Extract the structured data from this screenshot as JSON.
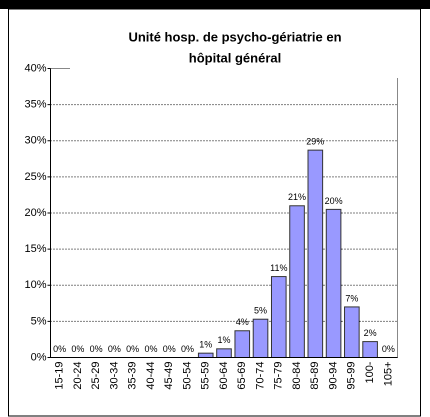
{
  "chart_data": {
    "type": "bar",
    "title": [
      "Unité hosp. de psycho-gériatrie en",
      "hôpital général"
    ],
    "categories": [
      "15-19",
      "20-24",
      "25-29",
      "30-34",
      "35-39",
      "40-44",
      "45-49",
      "50-54",
      "55-59",
      "60-64",
      "65-69",
      "70-74",
      "75-79",
      "80-84",
      "85-89",
      "90-94",
      "95-99",
      "100-",
      "105+"
    ],
    "values": [
      0,
      0,
      0,
      0,
      0,
      0,
      0,
      0,
      0.6,
      1.2,
      3.7,
      5.3,
      11.2,
      21,
      28.7,
      20.5,
      7,
      2.2,
      0
    ],
    "value_labels": [
      "0%",
      "0%",
      "0%",
      "0%",
      "0%",
      "0%",
      "0%",
      "0%",
      "1%",
      "1%",
      "4%",
      "5%",
      "11%",
      "21%",
      "29%",
      "20%",
      "7%",
      "2%",
      "0%"
    ],
    "color": "#9999ff",
    "ylim": [
      0,
      40
    ],
    "yticks": [
      {
        "value": 0,
        "label": "0%"
      },
      {
        "value": 5,
        "label": "5%"
      },
      {
        "value": 10,
        "label": "10%"
      },
      {
        "value": 15,
        "label": "15%"
      },
      {
        "value": 20,
        "label": "20%"
      },
      {
        "value": 25,
        "label": "25%"
      },
      {
        "value": 30,
        "label": "30%"
      },
      {
        "value": 35,
        "label": "35%"
      },
      {
        "value": 40,
        "label": "40%"
      }
    ],
    "grid": true
  }
}
